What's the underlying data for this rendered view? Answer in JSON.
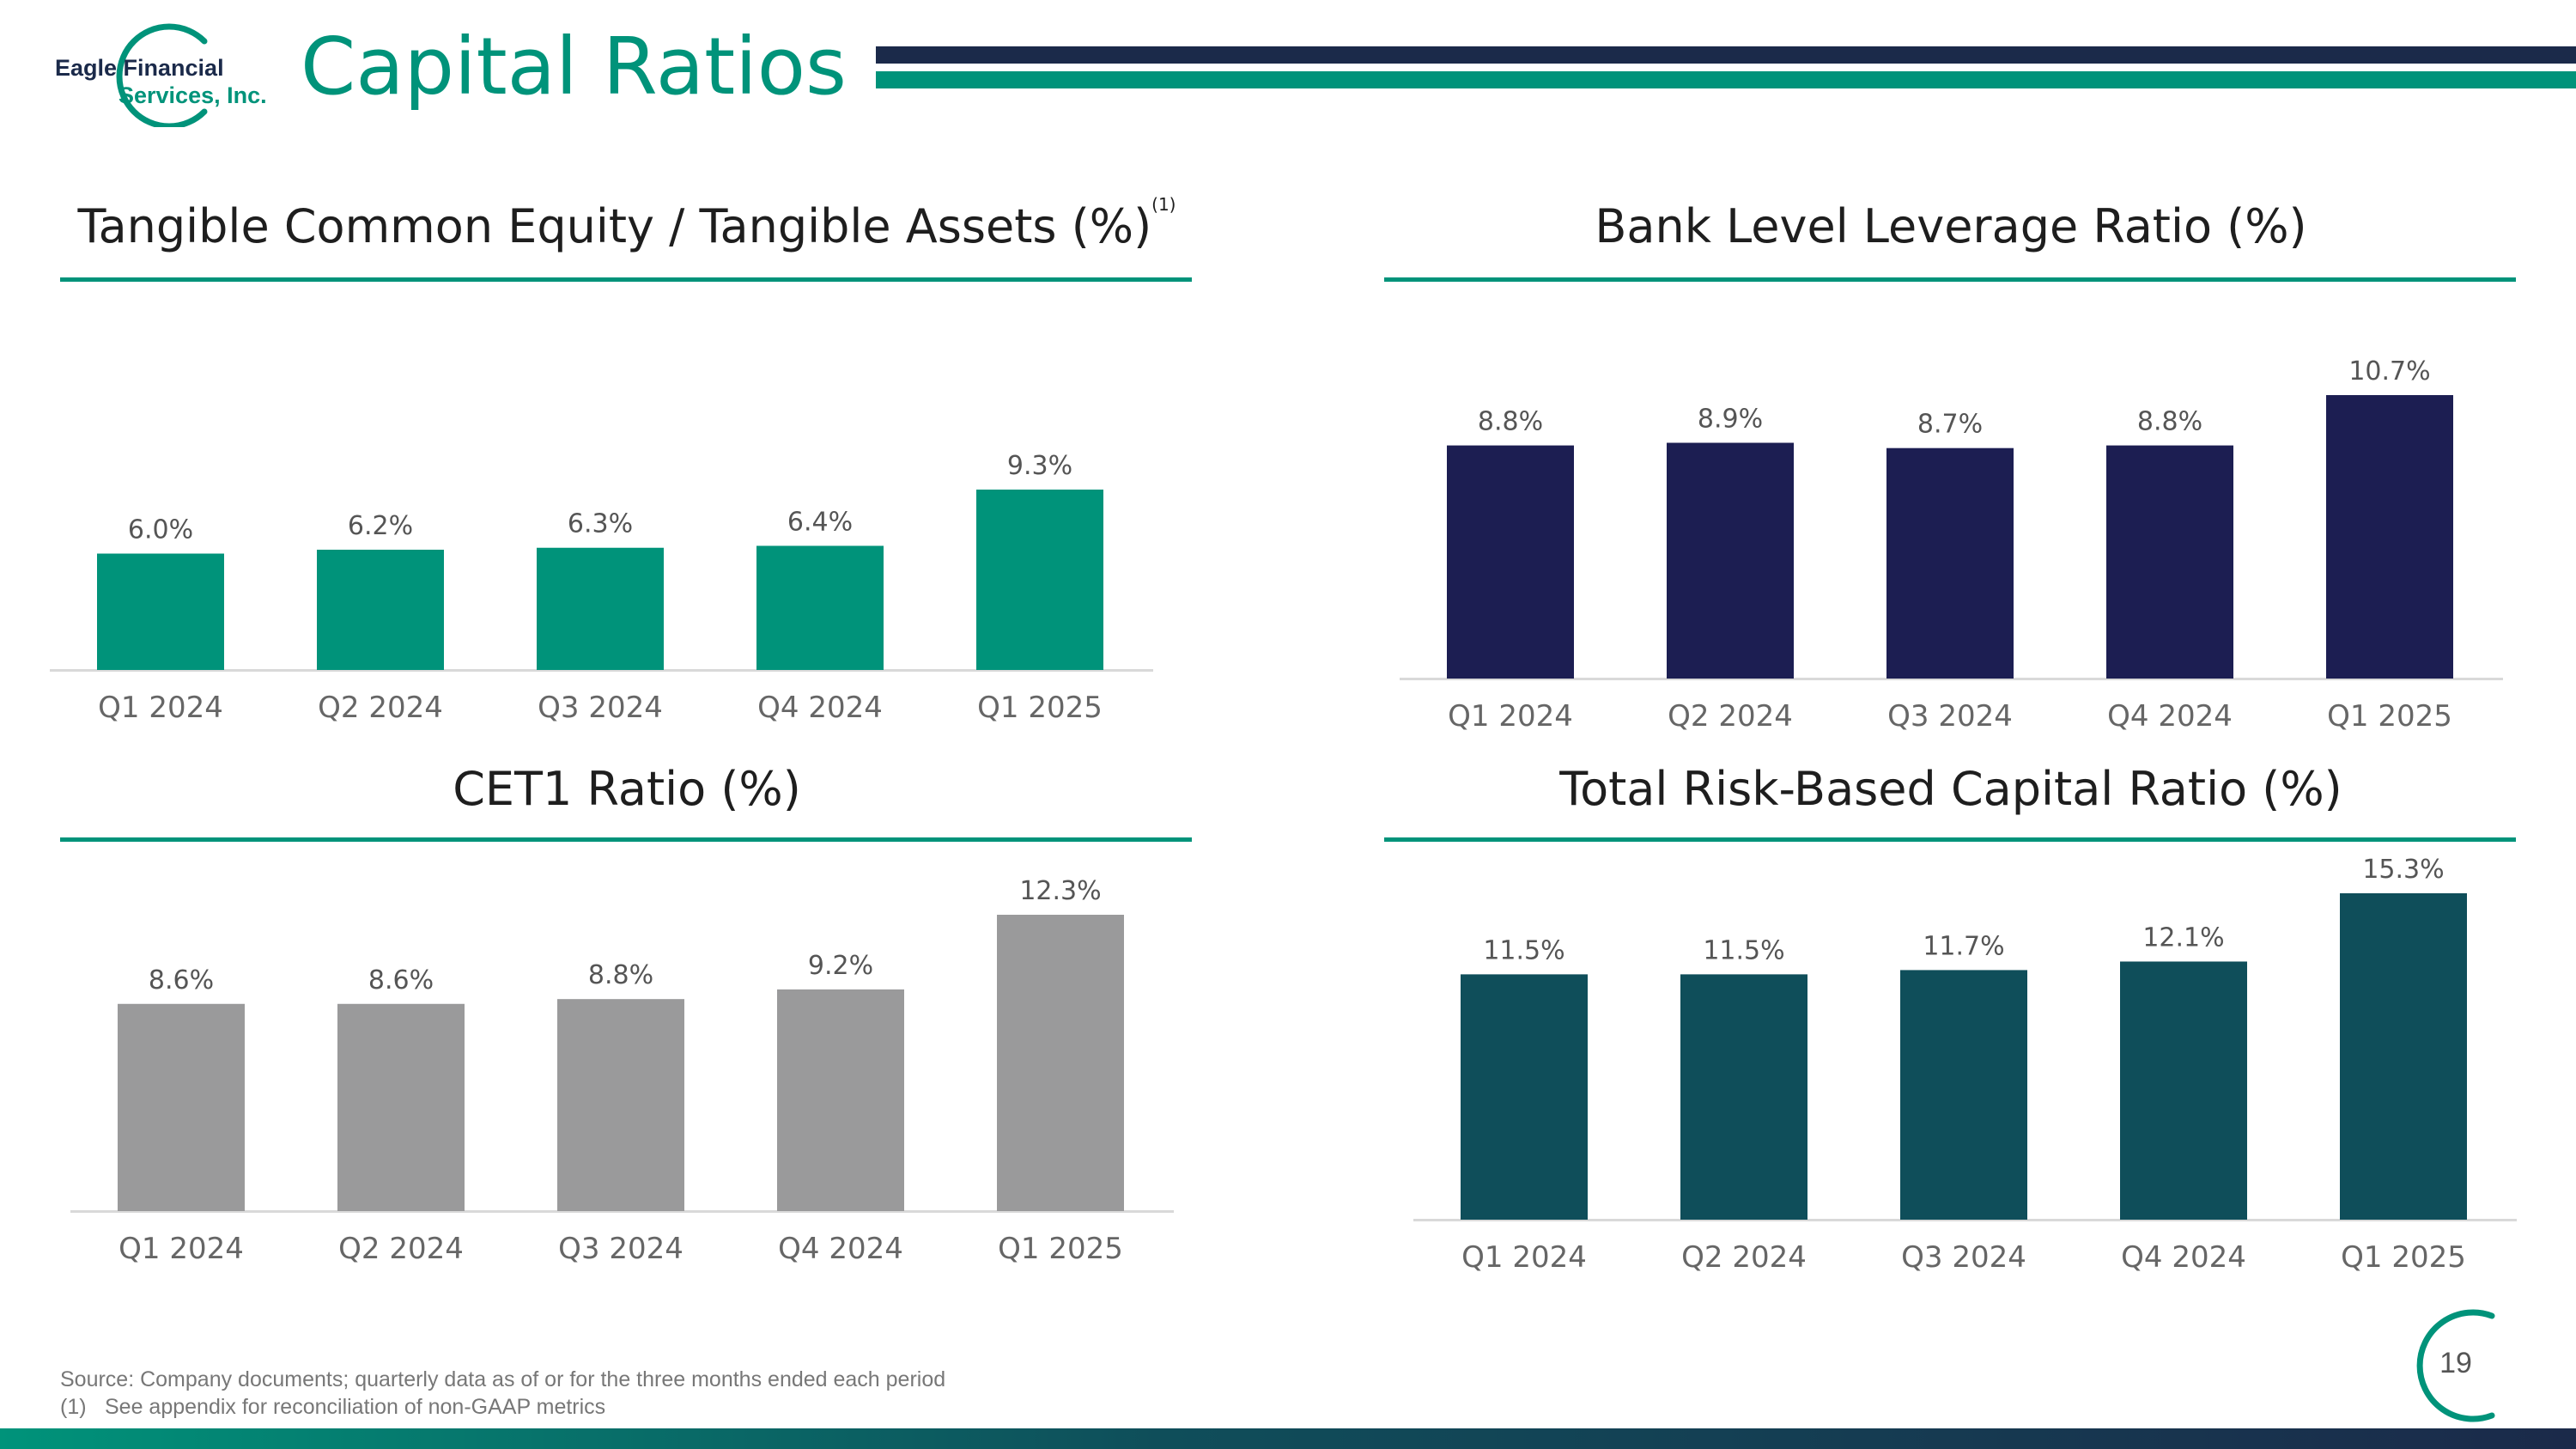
{
  "header": {
    "title": "Capital Ratios",
    "logo": {
      "line1": "Eagle Financial",
      "line2": "Services, Inc."
    }
  },
  "colors": {
    "teal": "#00937a",
    "navy": "#1c1e52",
    "gray": "#9a9a9b",
    "dark_teal": "#0f4e5a"
  },
  "chart_data": [
    {
      "id": "tce",
      "type": "bar",
      "title": "Tangible Common Equity / Tangible Assets (%)",
      "title_note": "(1)",
      "categories": [
        "Q1 2024",
        "Q2 2024",
        "Q3 2024",
        "Q4 2024",
        "Q1 2025"
      ],
      "values": [
        6.0,
        6.2,
        6.3,
        6.4,
        9.3
      ],
      "value_labels": [
        "6.0%",
        "6.2%",
        "6.3%",
        "6.4%",
        "9.3%"
      ],
      "color": "#00937a",
      "ylim": [
        0,
        10
      ],
      "grid": false
    },
    {
      "id": "leverage",
      "type": "bar",
      "title": "Bank Level Leverage Ratio (%)",
      "categories": [
        "Q1 2024",
        "Q2 2024",
        "Q3 2024",
        "Q4 2024",
        "Q1 2025"
      ],
      "values": [
        8.8,
        8.9,
        8.7,
        8.8,
        10.7
      ],
      "value_labels": [
        "8.8%",
        "8.9%",
        "8.7%",
        "8.8%",
        "10.7%"
      ],
      "color": "#1c1e52",
      "ylim": [
        0,
        11.5
      ],
      "grid": false
    },
    {
      "id": "cet1",
      "type": "bar",
      "title": "CET1 Ratio (%)",
      "categories": [
        "Q1 2024",
        "Q2 2024",
        "Q3 2024",
        "Q4 2024",
        "Q1 2025"
      ],
      "values": [
        8.6,
        8.6,
        8.8,
        9.2,
        12.3
      ],
      "value_labels": [
        "8.6%",
        "8.6%",
        "8.8%",
        "9.2%",
        "12.3%"
      ],
      "color": "#9a9a9b",
      "ylim": [
        0,
        13.5
      ],
      "grid": false
    },
    {
      "id": "trbc",
      "type": "bar",
      "title": "Total Risk-Based Capital Ratio (%)",
      "categories": [
        "Q1 2024",
        "Q2 2024",
        "Q3 2024",
        "Q4 2024",
        "Q1 2025"
      ],
      "values": [
        11.5,
        11.5,
        11.7,
        12.1,
        15.3
      ],
      "value_labels": [
        "11.5%",
        "11.5%",
        "11.7%",
        "12.1%",
        "15.3%"
      ],
      "color": "#0f4e5a",
      "ylim": [
        0,
        16.5
      ],
      "grid": false
    }
  ],
  "footnotes": {
    "source": "Source: Company documents; quarterly data as of or for the three months ended each period",
    "note_marker": "(1)",
    "note_text": "See appendix for reconciliation of non-GAAP metrics"
  },
  "page_number": "19"
}
